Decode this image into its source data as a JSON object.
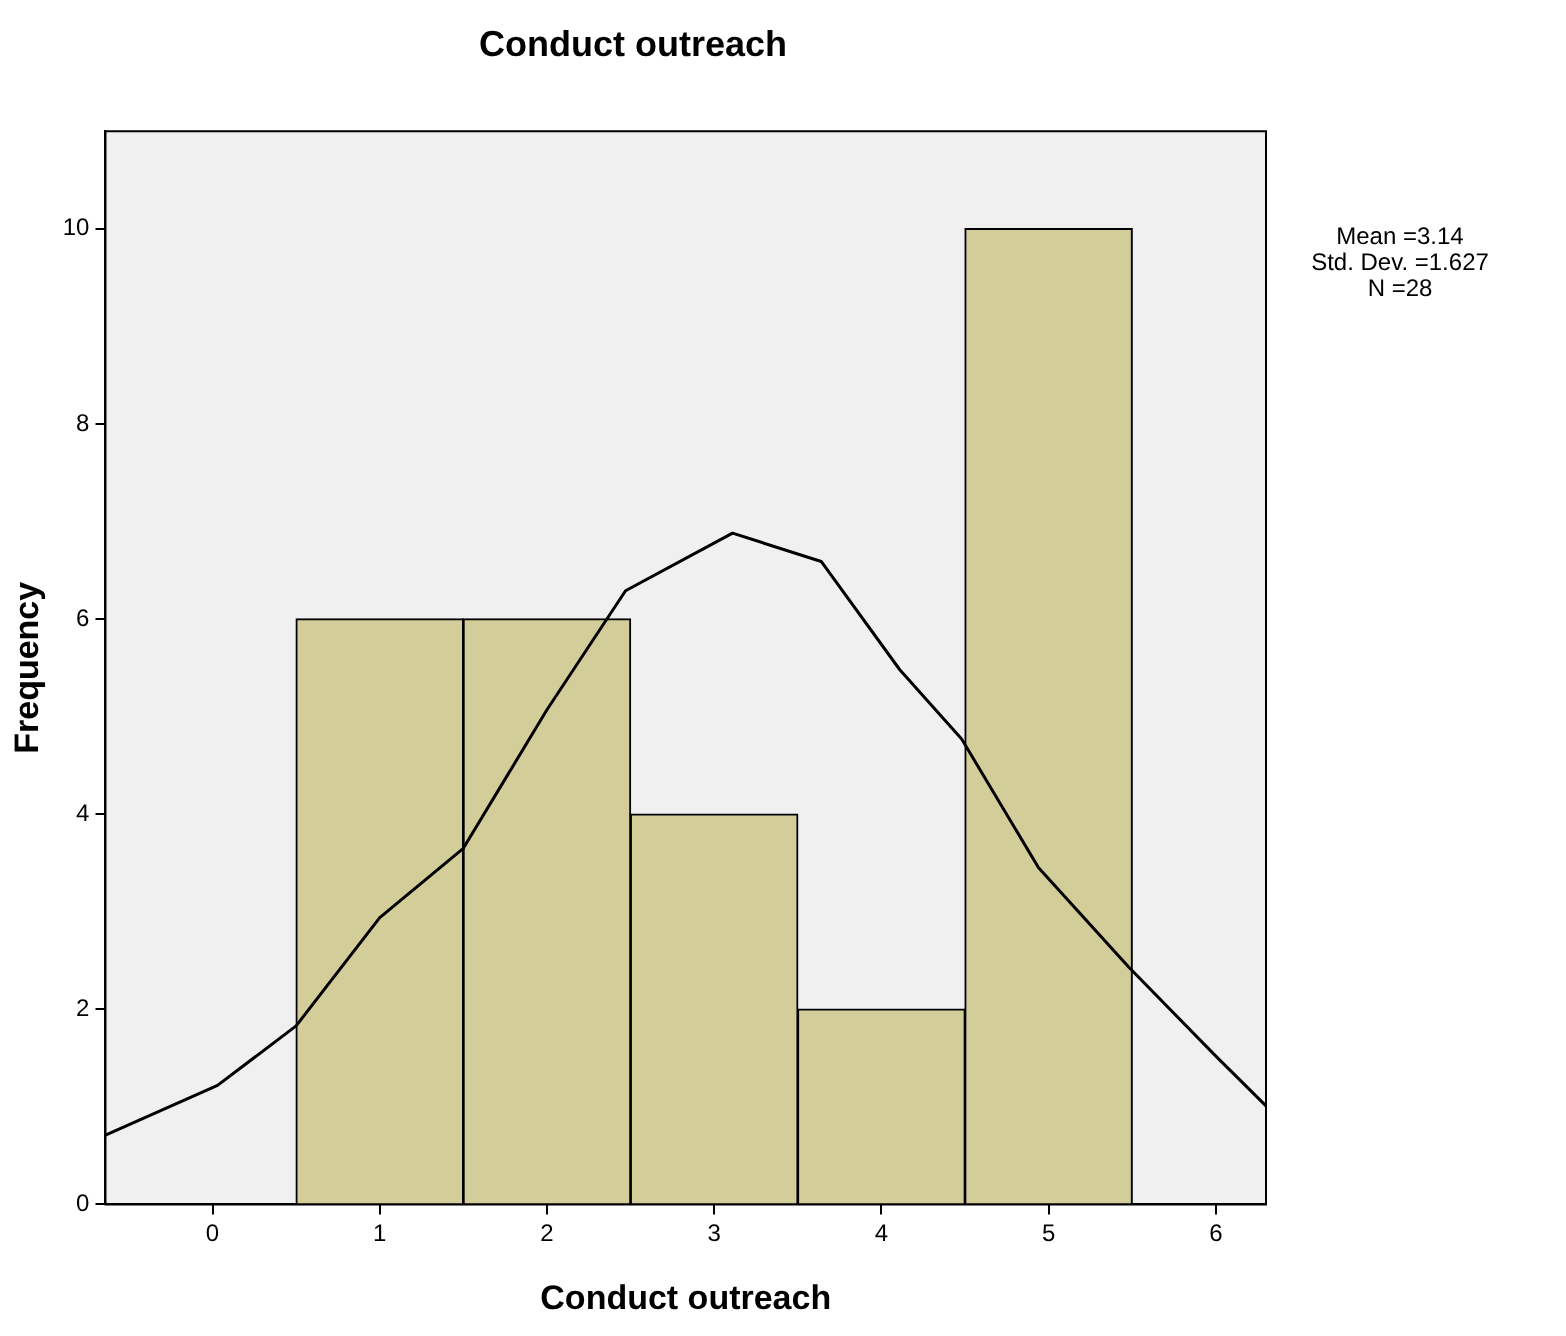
{
  "chart_data": {
    "type": "histogram",
    "title": "Conduct outreach",
    "xlabel": "Conduct outreach",
    "ylabel": "Frequency",
    "bins": [
      0.5,
      1.5,
      2.5,
      3.5,
      4.5,
      5.5
    ],
    "values": [
      6,
      6,
      4,
      2,
      10
    ],
    "color": "#d3ce99",
    "series": [
      {
        "type": "line",
        "color": "#000000",
        "marker": "none",
        "x": [
          -0.64,
          0.03,
          0.5,
          1.0,
          1.5,
          2.0,
          2.47,
          3.11,
          3.64,
          4.11,
          4.48,
          4.94,
          5.48,
          6.0,
          6.3
        ],
        "values": [
          0.71,
          1.22,
          1.83,
          2.94,
          3.65,
          5.07,
          6.29,
          6.88,
          6.59,
          5.48,
          4.77,
          3.45,
          2.43,
          1.52,
          1.01
        ]
      }
    ],
    "xlim": [
      -0.64,
      6.3
    ],
    "xticks": [
      0,
      1,
      2,
      3,
      4,
      5,
      6
    ],
    "ylim": [
      0,
      11
    ],
    "yticks": [
      0,
      2,
      4,
      6,
      8,
      10
    ],
    "grid": false,
    "legend": false,
    "annotations": [
      "Mean =3.14",
      "Std. Dev. =1.627",
      "N =28"
    ]
  }
}
